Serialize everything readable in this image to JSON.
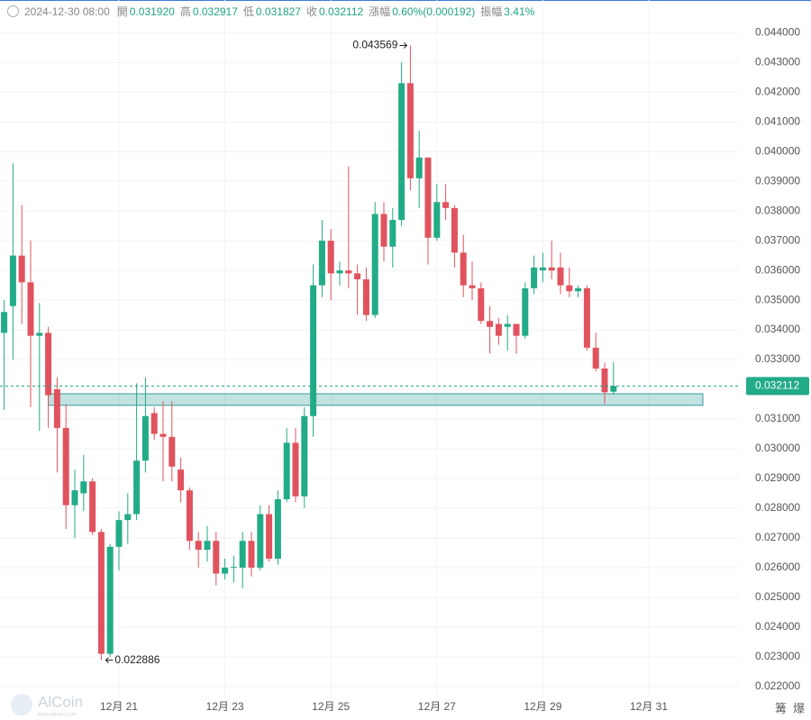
{
  "header": {
    "datetime": "2024-12-30 08:00",
    "items": [
      {
        "label": "開",
        "value": "0.031920"
      },
      {
        "label": "高",
        "value": "0.032917"
      },
      {
        "label": "低",
        "value": "0.031827"
      },
      {
        "label": "收",
        "value": "0.032112"
      },
      {
        "label": "漲幅",
        "value": "0.60%(0.000192)"
      },
      {
        "label": "振幅",
        "value": "3.41%"
      }
    ]
  },
  "watermark": {
    "name": "AlCoin",
    "site": "www.aicoin.com"
  },
  "footer_icons": [
    "篝",
    "爆"
  ],
  "chart_data": {
    "type": "candlestick",
    "categories": [
      null,
      null,
      null,
      null,
      null,
      null,
      null,
      null,
      null,
      null,
      null,
      null,
      null,
      "12月 21",
      null,
      null,
      null,
      null,
      null,
      null,
      null,
      null,
      null,
      null,
      null,
      "12月 23",
      null,
      null,
      null,
      null,
      null,
      null,
      null,
      null,
      null,
      null,
      null,
      "12月 25",
      null,
      null,
      null,
      null,
      null,
      null,
      null,
      null,
      null,
      null,
      null,
      "12月 27",
      null,
      null,
      null,
      null,
      null,
      null,
      null,
      null,
      null,
      null,
      null,
      "12月 29",
      null,
      null,
      null,
      null,
      null,
      null,
      null,
      null,
      null,
      null,
      null,
      "12月 31"
    ],
    "open": [
      0.0339,
      0.0348,
      0.0365,
      0.0356,
      0.0338,
      0.0339,
      0.032,
      0.0307,
      0.0281,
      0.0285,
      0.0289,
      0.0272,
      0.0231,
      0.0267,
      0.0276,
      0.0278,
      0.0296,
      0.0312,
      0.0305,
      0.0304,
      0.0293,
      0.0286,
      0.0269,
      0.0266,
      0.0269,
      0.0258,
      0.026,
      0.026,
      0.0269,
      0.026,
      0.0278,
      0.0263,
      0.0283,
      0.0302,
      0.0284,
      0.0311,
      0.0355,
      0.037,
      0.0359,
      0.036,
      0.0359,
      0.0357,
      0.0345,
      0.0379,
      0.0368,
      0.0377,
      0.0423,
      0.0391,
      0.0398,
      0.0371,
      0.0383,
      0.0381,
      0.0366,
      0.0355,
      0.0354,
      0.0343,
      0.0342,
      0.0341,
      0.0342,
      0.0338,
      0.0354,
      0.036,
      0.0361,
      0.0361,
      0.0355,
      0.0353,
      0.0354,
      0.0334,
      0.0327,
      0.03192,
      null,
      null,
      null,
      null
    ],
    "high": [
      0.035,
      0.0396,
      0.0382,
      0.037,
      0.0349,
      0.0341,
      0.0324,
      0.0315,
      0.0293,
      0.0298,
      0.029,
      0.0273,
      0.0268,
      0.0279,
      0.0285,
      0.0322,
      0.0324,
      0.0314,
      0.0316,
      0.0316,
      0.0297,
      0.0287,
      0.0272,
      0.0274,
      0.0272,
      0.0263,
      0.0264,
      0.0272,
      0.0272,
      0.0281,
      0.0281,
      0.0286,
      0.0307,
      0.0307,
      0.0314,
      0.0362,
      0.0377,
      0.0374,
      0.0363,
      0.0395,
      0.0362,
      0.0361,
      0.0383,
      0.0383,
      0.0381,
      0.043,
      0.043569,
      0.0407,
      0.0398,
      0.0389,
      0.0389,
      0.0382,
      0.0372,
      0.0363,
      0.0356,
      0.0348,
      0.0344,
      0.0345,
      0.0342,
      0.0356,
      0.0365,
      0.0366,
      0.037,
      0.0366,
      0.0361,
      0.0355,
      0.0355,
      0.0339,
      0.0329,
      0.032917,
      null,
      null,
      null,
      null
    ],
    "low": [
      0.0313,
      0.033,
      0.0342,
      0.0314,
      0.0306,
      0.0307,
      0.0292,
      0.0273,
      0.027,
      0.0279,
      0.0271,
      0.022886,
      0.023,
      0.0259,
      0.0268,
      0.0276,
      0.0292,
      0.0303,
      0.0289,
      0.0289,
      0.0282,
      0.0266,
      0.026,
      0.0262,
      0.0254,
      0.0256,
      0.0255,
      0.0253,
      0.0257,
      0.0259,
      0.0262,
      0.0261,
      0.0282,
      0.0282,
      0.028,
      0.0304,
      0.0351,
      0.035,
      0.0355,
      0.0354,
      0.0345,
      0.0343,
      0.0344,
      0.0363,
      0.0361,
      0.0375,
      0.0387,
      0.0381,
      0.0362,
      0.037,
      0.0377,
      0.0361,
      0.0351,
      0.035,
      0.0342,
      0.0332,
      0.0335,
      0.0333,
      0.0332,
      0.0337,
      0.0352,
      0.0356,
      0.0357,
      0.0352,
      0.0351,
      0.0351,
      0.0333,
      0.0326,
      0.0315,
      0.031827,
      null,
      null,
      null,
      null
    ],
    "close": [
      0.0346,
      0.0365,
      0.0356,
      0.0338,
      0.0339,
      0.0318,
      0.0307,
      0.0281,
      0.0286,
      0.0289,
      0.0272,
      0.0231,
      0.0267,
      0.0276,
      0.0278,
      0.0296,
      0.0311,
      0.0305,
      0.0304,
      0.0294,
      0.0286,
      0.0269,
      0.0266,
      0.0269,
      0.0258,
      0.026,
      0.02603,
      0.0269,
      0.026,
      0.0278,
      0.0263,
      0.0283,
      0.0302,
      0.0284,
      0.0311,
      0.0355,
      0.037,
      0.0359,
      0.036,
      0.0359,
      0.0357,
      0.0345,
      0.0379,
      0.0368,
      0.0377,
      0.0423,
      0.0391,
      0.0398,
      0.0371,
      0.0383,
      0.0381,
      0.0366,
      0.0355,
      0.0354,
      0.0343,
      0.0341,
      0.0338,
      0.0342,
      0.0338,
      0.0354,
      0.0361,
      0.0361,
      0.036,
      0.0355,
      0.0353,
      0.0354,
      0.0334,
      0.0327,
      0.0319,
      0.032112,
      null,
      null,
      null,
      null
    ],
    "up_color": "#22ab87",
    "down_color": "#e0535e",
    "zone": [
      0.03146,
      0.03185
    ],
    "ylim": [
      0.0216,
      0.0451
    ],
    "yticks": [
      {
        "value": 0.022,
        "label": "0.022000"
      },
      {
        "value": 0.023,
        "label": "0.023000"
      },
      {
        "value": 0.024,
        "label": "0.024000"
      },
      {
        "value": 0.025,
        "label": "0.025000"
      },
      {
        "value": 0.026,
        "label": "0.026000"
      },
      {
        "value": 0.027,
        "label": "0.027000"
      },
      {
        "value": 0.028,
        "label": "0.028000"
      },
      {
        "value": 0.029,
        "label": "0.029000"
      },
      {
        "value": 0.03,
        "label": "0.030000"
      },
      {
        "value": 0.031,
        "label": "0.031000"
      },
      {
        "value": 0.032,
        "label": "0.032000"
      },
      {
        "value": 0.033,
        "label": "0.033000"
      },
      {
        "value": 0.034,
        "label": "0.034000"
      },
      {
        "value": 0.035,
        "label": "0.035000"
      },
      {
        "value": 0.036,
        "label": "0.036000"
      },
      {
        "value": 0.037,
        "label": "0.037000"
      },
      {
        "value": 0.038,
        "label": "0.038000"
      },
      {
        "value": 0.039,
        "label": "0.039000"
      },
      {
        "value": 0.04,
        "label": "0.040000"
      },
      {
        "value": 0.041,
        "label": "0.041000"
      },
      {
        "value": 0.042,
        "label": "0.042000"
      },
      {
        "value": 0.043,
        "label": "0.043000"
      },
      {
        "value": 0.044,
        "label": "0.044000"
      }
    ],
    "grid": true
  }
}
